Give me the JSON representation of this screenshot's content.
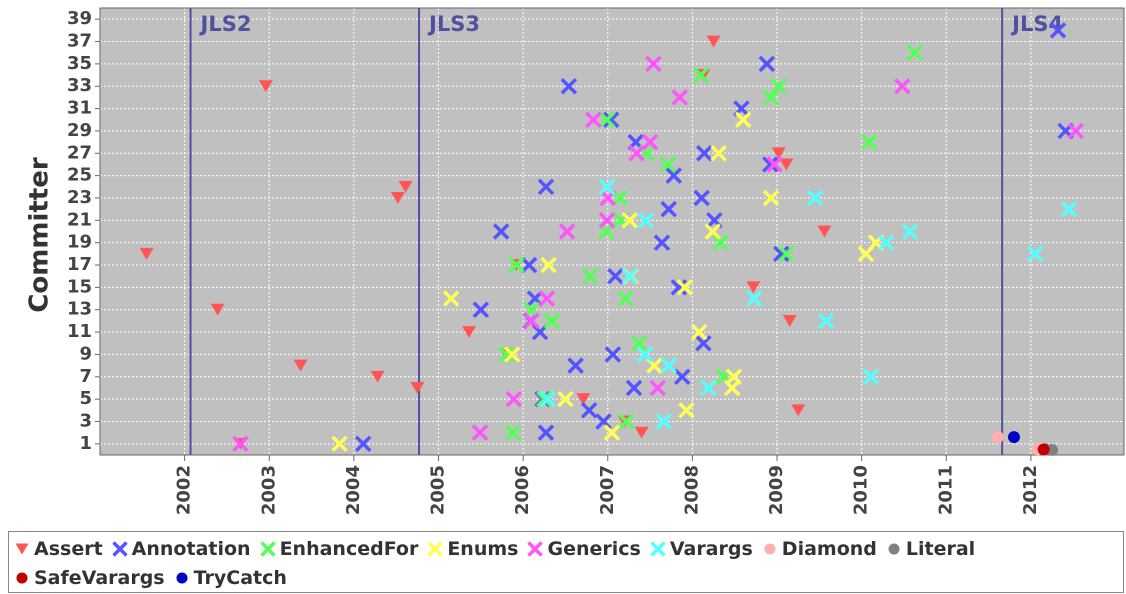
{
  "chart_data": {
    "type": "scatter",
    "y_label": "Committer",
    "xlim": [
      2001,
      2013.1
    ],
    "xticks": [
      2002,
      2003,
      2004,
      2005,
      2006,
      2007,
      2008,
      2009,
      2010,
      2011,
      2012
    ],
    "ylim": [
      0,
      40
    ],
    "yticks": [
      1,
      3,
      5,
      7,
      9,
      11,
      13,
      15,
      17,
      19,
      21,
      23,
      25,
      27,
      29,
      31,
      33,
      35,
      37,
      39
    ],
    "grid": true,
    "legend": "bottom",
    "annotations": [
      {
        "label": "JLS2",
        "x": 2002.07
      },
      {
        "label": "JLS3",
        "x": 2004.77
      },
      {
        "label": "JLS4",
        "x": 2011.66
      }
    ],
    "series": [
      {
        "name": "Assert",
        "color": "#ff5555",
        "marker": "triangle-down",
        "x": [
          2001.55,
          2002.39,
          2002.66,
          2002.96,
          2003.37,
          2004.28,
          2004.75,
          2004.61,
          2004.52,
          2005.36,
          2005.8,
          2005.92,
          2006.71,
          2007.2,
          2007.4,
          2008.25,
          2008.13,
          2008.72,
          2009.02,
          2009.11,
          2009.15,
          2009.25,
          2009.56
        ],
        "values": [
          18,
          13,
          1,
          33,
          8,
          7,
          6,
          24,
          23,
          11,
          9,
          17,
          5,
          3,
          2,
          37,
          34,
          15,
          27,
          26,
          12,
          4,
          20
        ]
      },
      {
        "name": "Annotation",
        "color": "#5555ff",
        "marker": "cross",
        "x": [
          2012.32,
          2008.88,
          2006.54,
          2008.58,
          2007.04,
          2007.33,
          2008.14,
          2008.92,
          2007.78,
          2006.27,
          2008.11,
          2007.72,
          2008.26,
          2005.74,
          2007.64,
          2009.05,
          2006.07,
          2007.09,
          2007.84,
          2006.14,
          2005.5,
          2006.09,
          2006.2,
          2008.13,
          2007.06,
          2006.62,
          2007.88,
          2007.31,
          2006.23,
          2006.78,
          2006.95,
          2006.27,
          2004.11,
          2012.41
        ],
        "values": [
          38,
          35,
          33,
          31,
          30,
          28,
          27,
          26,
          25,
          24,
          23,
          22,
          21,
          20,
          19,
          18,
          17,
          16,
          15,
          14,
          13,
          12,
          11,
          10,
          9,
          8,
          7,
          6,
          5,
          4,
          3,
          2,
          1,
          29
        ]
      },
      {
        "name": "EnhancedFor",
        "color": "#55ff55",
        "marker": "cross",
        "x": [
          2010.63,
          2008.1,
          2009.02,
          2008.93,
          2006.99,
          2010.09,
          2007.46,
          2007.71,
          2007.14,
          2007.15,
          2006.98,
          2008.33,
          2009.11,
          2005.92,
          2006.79,
          2007.21,
          2006.1,
          2006.34,
          2007.37,
          2005.8,
          2008.37,
          2006.25,
          2007.22,
          2005.88
        ],
        "values": [
          36,
          34,
          33,
          32,
          30,
          28,
          27,
          26,
          23,
          21,
          20,
          19,
          18,
          17,
          16,
          14,
          13,
          12,
          10,
          9,
          7,
          5,
          3,
          2
        ]
      },
      {
        "name": "Enums",
        "color": "#ffff55",
        "marker": "cross",
        "x": [
          2008.6,
          2008.31,
          2008.93,
          2007.26,
          2008.24,
          2010.17,
          2010.05,
          2006.3,
          2007.27,
          2007.91,
          2005.15,
          2008.08,
          2005.87,
          2007.55,
          2008.49,
          2008.47,
          2006.5,
          2007.93,
          2007.05,
          2003.83
        ],
        "values": [
          30,
          27,
          23,
          21,
          20,
          19,
          18,
          17,
          16,
          15,
          14,
          11,
          9,
          8,
          7,
          6,
          5,
          4,
          2,
          1
        ]
      },
      {
        "name": "Generics",
        "color": "#ff55ff",
        "marker": "cross",
        "x": [
          2007.54,
          2010.48,
          2007.85,
          2006.83,
          2007.5,
          2007.34,
          2008.97,
          2007.0,
          2006.99,
          2006.52,
          2006.28,
          2006.1,
          2007.59,
          2005.89,
          2005.49,
          2002.66,
          2012.53
        ],
        "values": [
          35,
          33,
          32,
          30,
          28,
          27,
          26,
          23,
          21,
          20,
          14,
          12,
          6,
          5,
          2,
          1,
          29
        ]
      },
      {
        "name": "Varargs",
        "color": "#55ffff",
        "marker": "cross",
        "x": [
          2006.99,
          2009.45,
          2012.45,
          2007.45,
          2010.57,
          2010.29,
          2012.05,
          2007.26,
          2008.73,
          2009.58,
          2007.44,
          2007.72,
          2010.11,
          2008.19,
          2006.29,
          2007.66
        ],
        "values": [
          24,
          23,
          22,
          21,
          20,
          19,
          18,
          16,
          14,
          12,
          9,
          8,
          7,
          6,
          5,
          3
        ]
      },
      {
        "name": "Diamond",
        "color": "#ffafaf",
        "marker": "circle",
        "x": [
          2011.61,
          2012.08
        ],
        "values": [
          1.6,
          0.5
        ]
      },
      {
        "name": "Literal",
        "color": "#808080",
        "marker": "circle",
        "x": [
          2012.17,
          2012.25
        ],
        "values": [
          0.5,
          0.45
        ]
      },
      {
        "name": "SafeVarargs",
        "color": "#c00000",
        "marker": "circle",
        "x": [
          2012.15
        ],
        "values": [
          0.5
        ]
      },
      {
        "name": "TryCatch",
        "color": "#0000c0",
        "marker": "circle",
        "x": [
          2011.8
        ],
        "values": [
          1.6
        ]
      }
    ]
  }
}
